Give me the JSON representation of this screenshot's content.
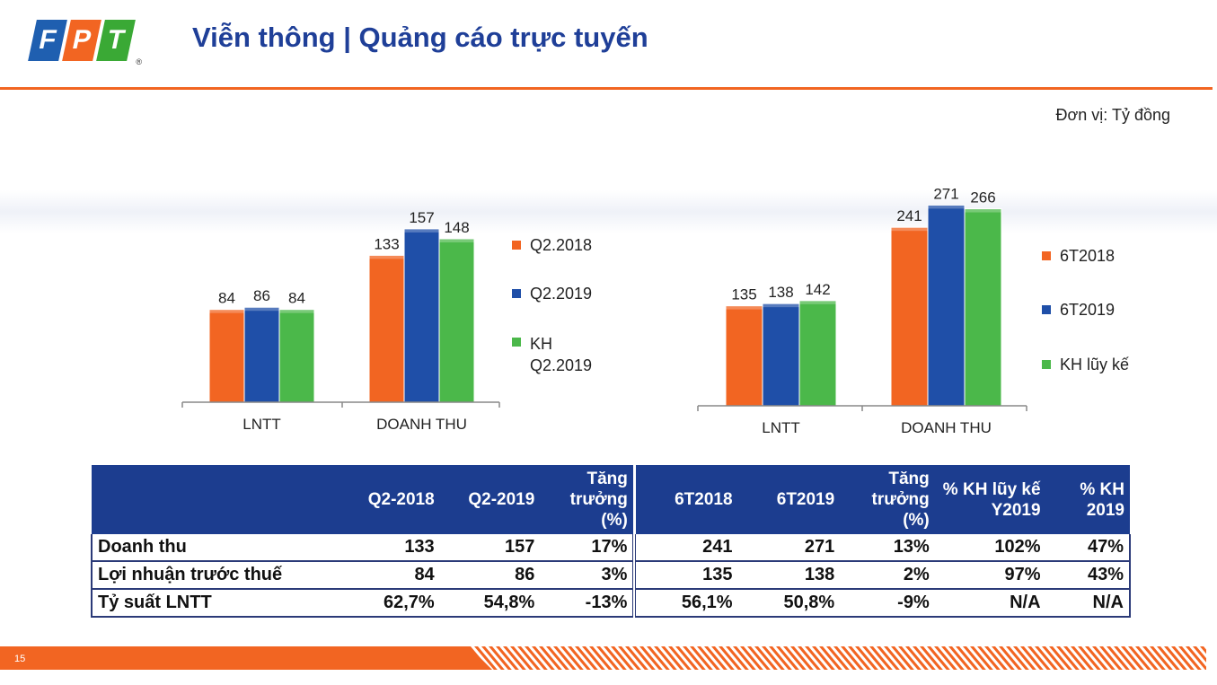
{
  "header": {
    "logo_letters": [
      "F",
      "P",
      "T"
    ],
    "title": "Viễn thông | Quảng cáo trực tuyến",
    "unit": "Đơn vị: Tỷ đồng"
  },
  "colors": {
    "orange": "#f26522",
    "blue": "#1f4fa8",
    "green": "#4bb84a",
    "header_blue": "#1c3d8f"
  },
  "chart_data": [
    {
      "type": "bar",
      "categories": [
        "LNTT",
        "DOANH THU"
      ],
      "series": [
        {
          "name": "Q2.2018",
          "values": [
            84,
            133
          ],
          "color": "#f26522"
        },
        {
          "name": "Q2.2019",
          "values": [
            86,
            157
          ],
          "color": "#1f4fa8"
        },
        {
          "name": "KH Q2.2019",
          "values": [
            84,
            148
          ],
          "color": "#4bb84a"
        }
      ],
      "ylim": [
        0,
        170
      ]
    },
    {
      "type": "bar",
      "categories": [
        "LNTT",
        "DOANH THU"
      ],
      "series": [
        {
          "name": "6T2018",
          "values": [
            135,
            241
          ],
          "color": "#f26522"
        },
        {
          "name": "6T2019",
          "values": [
            138,
            271
          ],
          "color": "#1f4fa8"
        },
        {
          "name": "KH lũy kế",
          "values": [
            142,
            266
          ],
          "color": "#4bb84a"
        }
      ],
      "ylim": [
        0,
        290
      ]
    }
  ],
  "table": {
    "headers": [
      "",
      "Q2-2018",
      "Q2-2019",
      "Tăng trưởng (%)",
      "6T2018",
      "6T2019",
      "Tăng trưởng (%)",
      "% KH lũy kế Y2019",
      "% KH 2019"
    ],
    "rows": [
      {
        "label": "Doanh thu",
        "cells": [
          "133",
          "157",
          "17%",
          "241",
          "271",
          "13%",
          "102%",
          "47%"
        ]
      },
      {
        "label": "Lợi nhuận trước thuế",
        "cells": [
          "84",
          "86",
          "3%",
          "135",
          "138",
          "2%",
          "97%",
          "43%"
        ]
      },
      {
        "label": "Tỷ suất LNTT",
        "cells": [
          "62,7%",
          "54,8%",
          "-13%",
          "56,1%",
          "50,8%",
          "-9%",
          "N/A",
          "N/A"
        ]
      }
    ]
  },
  "footer": {
    "page_number": "15"
  }
}
